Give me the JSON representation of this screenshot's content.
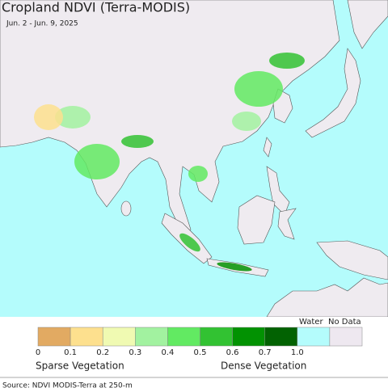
{
  "title": "Cropland NDVI (Terra-MODIS)",
  "subtitle": "Jun. 2 - Jun. 9, 2025",
  "legend": {
    "colors": [
      "#e2aa62",
      "#fde08e",
      "#f0fab2",
      "#a2f2a0",
      "#62ea62",
      "#32c232",
      "#029202",
      "#026202"
    ],
    "ticks": [
      0,
      0.1,
      0.2,
      0.3,
      0.4,
      0.5,
      0.6,
      0.7,
      {
        "value": 1,
        "label": "1.0"
      }
    ],
    "water_label": "Water",
    "water_color": "#b4fcfc",
    "no_data_label": "No Data",
    "no_data_color": "#eee8f0",
    "low_label": "Sparse Vegetation",
    "high_label": "Dense Vegetation"
  },
  "source": "Source: NDVI MODIS-Terra at 250-m"
}
